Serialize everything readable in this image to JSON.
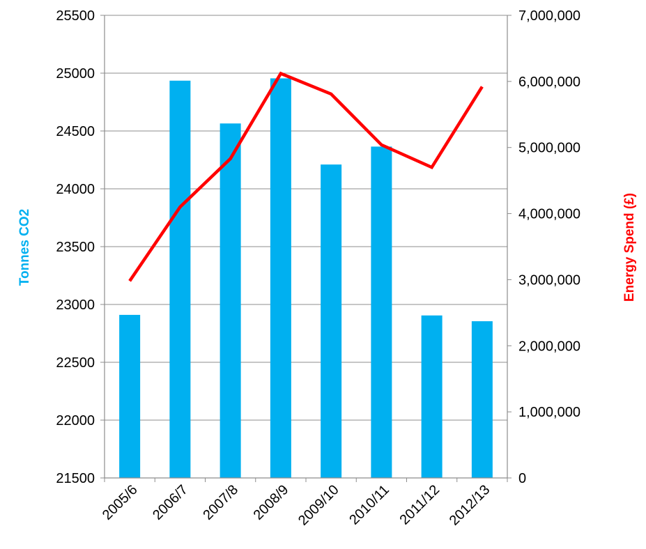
{
  "chart_data": {
    "type": "bar",
    "categories": [
      "2005/6",
      "2006/7",
      "2007/8",
      "2008/9",
      "2009/10",
      "2010/11",
      "2011/12",
      "2012/13"
    ],
    "series": [
      {
        "name": "Tonnes CO2",
        "type": "bar",
        "axis": "left",
        "color": "#00B0F0",
        "values": [
          22910,
          24935,
          24565,
          24955,
          24210,
          24365,
          22905,
          22855
        ]
      },
      {
        "name": "Energy Spend (£)",
        "type": "line",
        "axis": "right",
        "color": "#FF0000",
        "values": [
          2980000,
          4100000,
          4830000,
          6120000,
          5810000,
          5040000,
          4700000,
          5920000
        ]
      }
    ],
    "y_left": {
      "label": "Tonnes CO2",
      "ylim": [
        21500,
        25500
      ],
      "ticks": [
        21500,
        22000,
        22500,
        23000,
        23500,
        24000,
        24500,
        25000,
        25500
      ],
      "tick_labels": [
        "21500",
        "22000",
        "22500",
        "23000",
        "23500",
        "24000",
        "24500",
        "25000",
        "25500"
      ]
    },
    "y_right": {
      "label": "Energy Spend (£)",
      "ylim": [
        0,
        7000000
      ],
      "ticks": [
        0,
        1000000,
        2000000,
        3000000,
        4000000,
        5000000,
        6000000,
        7000000
      ],
      "tick_labels": [
        "0",
        "1,000,000",
        "2,000,000",
        "3,000,000",
        "4,000,000",
        "5,000,000",
        "6,000,000",
        "7,000,000"
      ]
    },
    "grid": true,
    "legend": "none"
  }
}
